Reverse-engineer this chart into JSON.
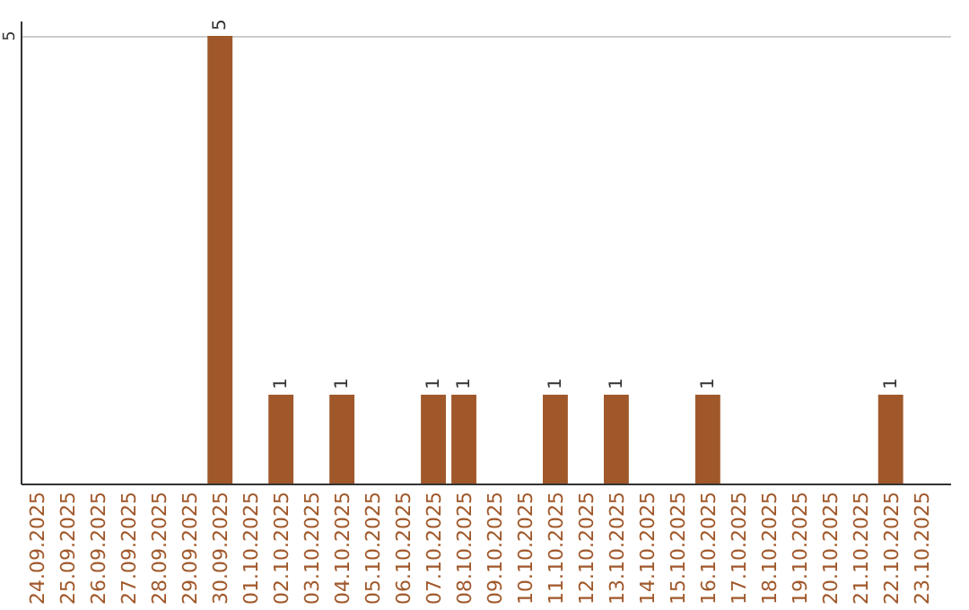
{
  "chart_data": {
    "type": "bar",
    "categories": [
      "24.09.2025",
      "25.09.2025",
      "26.09.2025",
      "27.09.2025",
      "28.09.2025",
      "29.09.2025",
      "30.09.2025",
      "01.10.2025",
      "02.10.2025",
      "03.10.2025",
      "04.10.2025",
      "05.10.2025",
      "06.10.2025",
      "07.10.2025",
      "08.10.2025",
      "09.10.2025",
      "10.10.2025",
      "11.10.2025",
      "12.10.2025",
      "13.10.2025",
      "14.10.2025",
      "15.10.2025",
      "16.10.2025",
      "17.10.2025",
      "18.10.2025",
      "19.10.2025",
      "20.10.2025",
      "21.10.2025",
      "22.10.2025",
      "23.10.2025"
    ],
    "values": [
      null,
      null,
      null,
      null,
      null,
      null,
      5,
      null,
      1,
      null,
      1,
      null,
      null,
      1,
      1,
      null,
      null,
      1,
      null,
      1,
      null,
      null,
      1,
      null,
      null,
      null,
      null,
      null,
      1,
      null
    ],
    "color": "#a0582a",
    "ylim": [
      0,
      5
    ],
    "yticks": [
      5
    ],
    "ref_lines": [
      {
        "axis": "y",
        "value": 5,
        "color": "#cccccc"
      }
    ],
    "data_labels": true
  }
}
